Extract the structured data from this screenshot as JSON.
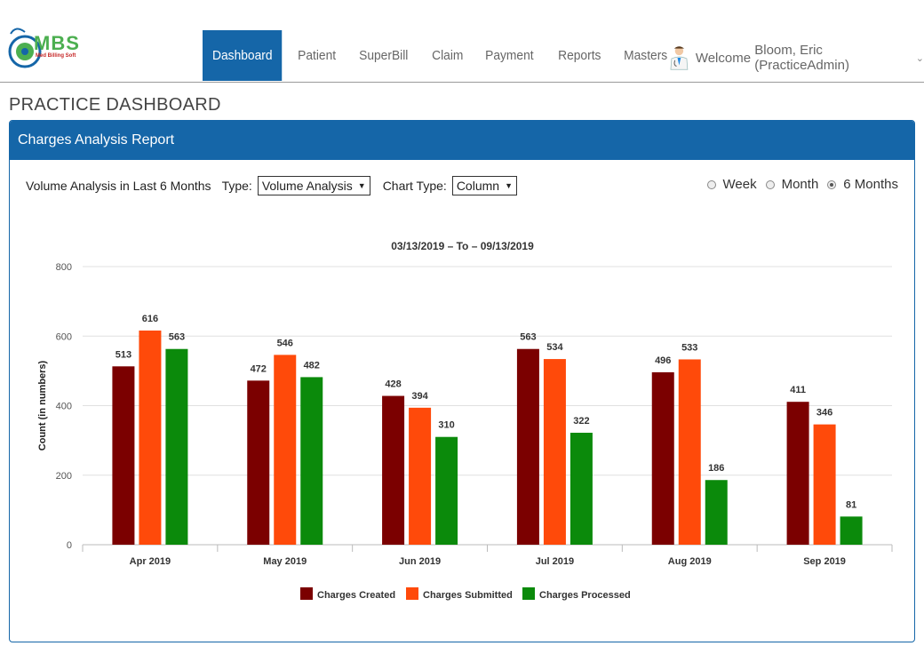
{
  "header": {
    "logo_text": "MBS",
    "logo_sub": "Med Billing Soft",
    "nav": [
      {
        "label": "Dashboard",
        "active": true
      },
      {
        "label": "Patient",
        "active": false
      },
      {
        "label": "SuperBill",
        "active": false
      },
      {
        "label": "Claim",
        "active": false
      },
      {
        "label": "Payment",
        "active": false
      },
      {
        "label": "Reports",
        "active": false
      },
      {
        "label": "Masters",
        "active": false
      }
    ],
    "welcome_label": "Welcome",
    "user_name": "Bloom, Eric (PracticeAdmin)"
  },
  "page_title": "PRACTICE DASHBOARD",
  "panel": {
    "title": "Charges Analysis Report",
    "volume_label": "Volume Analysis in Last 6 Months",
    "type_label": "Type:",
    "type_value": "Volume Analysis",
    "chart_type_label": "Chart Type:",
    "chart_type_value": "Column",
    "radios": [
      {
        "label": "Week",
        "checked": false
      },
      {
        "label": "Month",
        "checked": false
      },
      {
        "label": "6 Months",
        "checked": true
      }
    ]
  },
  "chart_data": {
    "type": "bar",
    "title": "03/13/2019 – To – 09/13/2019",
    "xlabel": "",
    "ylabel": "Count (in numbers)",
    "ylim": [
      0,
      800
    ],
    "yticks": [
      0,
      200,
      400,
      600,
      800
    ],
    "grid": true,
    "legend": "bottom",
    "categories": [
      "Apr 2019",
      "May 2019",
      "Jun 2019",
      "Jul 2019",
      "Aug 2019",
      "Sep 2019"
    ],
    "series": [
      {
        "name": "Charges Created",
        "color": "#7b0000",
        "values": [
          513,
          472,
          428,
          563,
          496,
          411
        ]
      },
      {
        "name": "Charges Submitted",
        "color": "#ff4a0a",
        "values": [
          616,
          546,
          394,
          534,
          533,
          346
        ]
      },
      {
        "name": "Charges Processed",
        "color": "#0b8a0b",
        "values": [
          563,
          482,
          310,
          322,
          186,
          81
        ]
      }
    ]
  }
}
